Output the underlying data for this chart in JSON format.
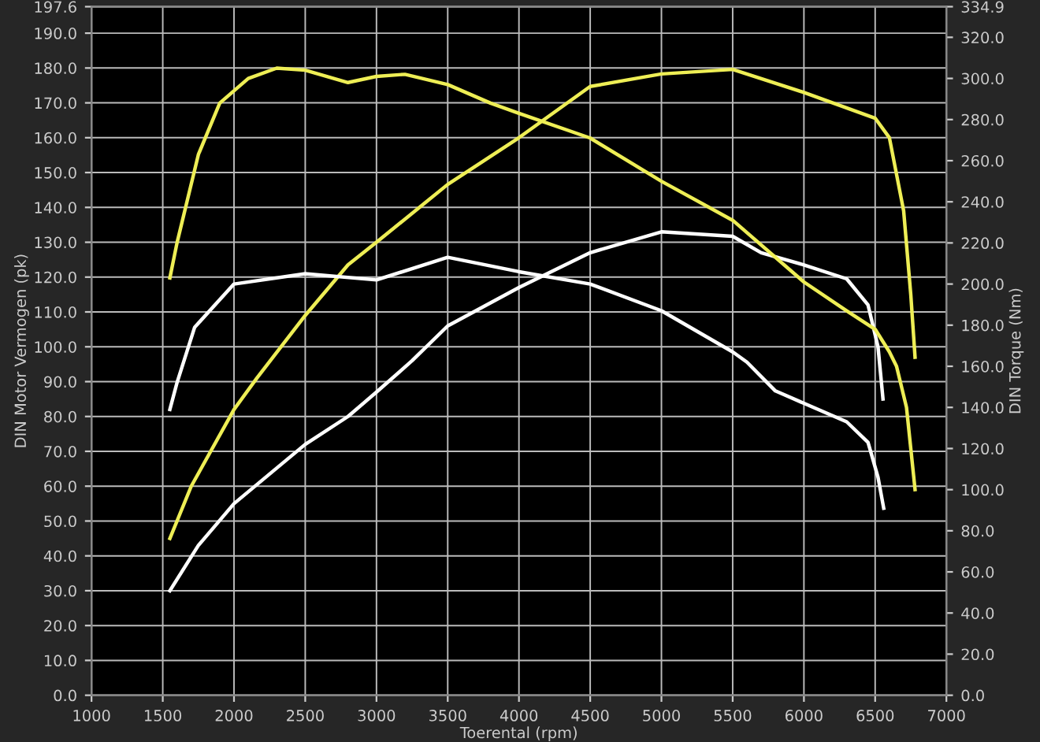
{
  "chart_data": {
    "type": "line",
    "xlabel": "Toerental (rpm)",
    "ylabel": "DIN Motor Vermogen (pk)",
    "y2label": "DIN Torque (Nm)",
    "xlim": [
      1000,
      7000
    ],
    "xticks": [
      1000,
      1500,
      2000,
      2500,
      3000,
      3500,
      4000,
      4500,
      5000,
      5500,
      6000,
      6500,
      7000
    ],
    "ylim": [
      0,
      197.6
    ],
    "yticks": [
      {
        "value": 0,
        "label": "0.0"
      },
      {
        "value": 10,
        "label": "10.0"
      },
      {
        "value": 20,
        "label": "20.0"
      },
      {
        "value": 30,
        "label": "30.0"
      },
      {
        "value": 40,
        "label": "40.0"
      },
      {
        "value": 50,
        "label": "50.0"
      },
      {
        "value": 60,
        "label": "60.0"
      },
      {
        "value": 70,
        "label": "70.0"
      },
      {
        "value": 80,
        "label": "80.0"
      },
      {
        "value": 90,
        "label": "90.0"
      },
      {
        "value": 100,
        "label": "100.0"
      },
      {
        "value": 110,
        "label": "110.0"
      },
      {
        "value": 120,
        "label": "120.0"
      },
      {
        "value": 130,
        "label": "130.0"
      },
      {
        "value": 140,
        "label": "140.0"
      },
      {
        "value": 150,
        "label": "150.0"
      },
      {
        "value": 160,
        "label": "160.0"
      },
      {
        "value": 170,
        "label": "170.0"
      },
      {
        "value": 180,
        "label": "180.0"
      },
      {
        "value": 190,
        "label": "190.0"
      },
      {
        "value": 197.6,
        "label": "197.6"
      }
    ],
    "y2lim": [
      0,
      334.9
    ],
    "y2ticks": [
      {
        "value": 0,
        "label": "0.0"
      },
      {
        "value": 20,
        "label": "20.0"
      },
      {
        "value": 40,
        "label": "40.0"
      },
      {
        "value": 60,
        "label": "60.0"
      },
      {
        "value": 80,
        "label": "80.0"
      },
      {
        "value": 100,
        "label": "100.0"
      },
      {
        "value": 120,
        "label": "120.0"
      },
      {
        "value": 140,
        "label": "140.0"
      },
      {
        "value": 160,
        "label": "160.0"
      },
      {
        "value": 180,
        "label": "180.0"
      },
      {
        "value": 200,
        "label": "200.0"
      },
      {
        "value": 220,
        "label": "220.0"
      },
      {
        "value": 240,
        "label": "240.0"
      },
      {
        "value": 260,
        "label": "260.0"
      },
      {
        "value": 280,
        "label": "280.0"
      },
      {
        "value": 300,
        "label": "300.0"
      },
      {
        "value": 320,
        "label": "320.0"
      },
      {
        "value": 334.9,
        "label": "334.9"
      }
    ],
    "grid": true,
    "line_style": "solid",
    "marker": "none",
    "series": [
      {
        "color": "#eeee55",
        "x": [
          1550,
          1700,
          2000,
          2160,
          2500,
          2800,
          3000,
          3500,
          4000,
          4500,
          5000,
          5500,
          6000,
          6500,
          6600,
          6700,
          6750,
          6780
        ],
        "values": [
          45,
          60,
          82,
          91,
          109,
          123.5,
          130,
          146.6,
          160,
          174.7,
          178.3,
          179.6,
          173,
          165.6,
          160,
          139,
          115,
          97
        ]
      },
      {
        "color": "#ffffff",
        "x": [
          1550,
          1750,
          2000,
          2500,
          2800,
          3000,
          3250,
          3500,
          4000,
          4500,
          5000,
          5500,
          5700,
          6000,
          6300,
          6450,
          6520,
          6555
        ],
        "values": [
          30,
          43,
          55,
          72,
          80,
          87,
          96,
          106,
          117,
          127,
          133,
          131.7,
          127,
          123.5,
          119.5,
          112,
          100,
          85
        ]
      },
      {
        "color": "#eeee55",
        "axis": "y2",
        "x": [
          1550,
          1600,
          1750,
          1900,
          2100,
          2300,
          2500,
          2800,
          3000,
          3200,
          3500,
          3800,
          4000,
          4500,
          5000,
          5500,
          6000,
          6300,
          6500,
          6600,
          6650,
          6720,
          6780
        ],
        "values": [
          203,
          220,
          263,
          288,
          300,
          305,
          304,
          298,
          301,
          302,
          297,
          288,
          283,
          271,
          250,
          231,
          201,
          187,
          178,
          167,
          160,
          140,
          100
        ]
      },
      {
        "color": "#ffffff",
        "axis": "y2",
        "x": [
          1550,
          1600,
          1724,
          2000,
          2500,
          3000,
          3500,
          4000,
          4500,
          5000,
          5500,
          5600,
          5800,
          6000,
          6300,
          6450,
          6520,
          6560
        ],
        "values": [
          139,
          152,
          179,
          200,
          205,
          202,
          213,
          206,
          200,
          187,
          167,
          162,
          148,
          142,
          133,
          123,
          106,
          91
        ]
      }
    ]
  }
}
